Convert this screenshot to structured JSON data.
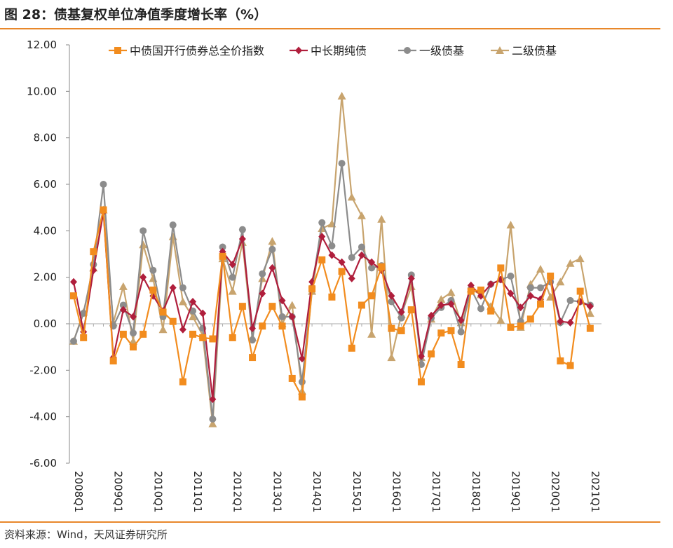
{
  "title": "图 28：债基复权单位净值季度增长率（%）",
  "source": "资料来源：Wind，天风证券研究所",
  "chart_data": {
    "type": "line",
    "title": "债基复权单位净值季度增长率（%）",
    "xlabel": "",
    "ylabel": "",
    "ylim": [
      -6,
      12
    ],
    "yticks": [
      "12.00",
      "10.00",
      "8.00",
      "6.00",
      "4.00",
      "2.00",
      "0.00",
      "-2.00",
      "-4.00",
      "-6.00"
    ],
    "ytick_values": [
      12,
      10,
      8,
      6,
      4,
      2,
      0,
      -2,
      -4,
      -6
    ],
    "xtick_labels": [
      "2008Q1",
      "2009Q1",
      "2010Q1",
      "2011Q1",
      "2012Q1",
      "2013Q1",
      "2014Q1",
      "2015Q1",
      "2016Q1",
      "2017Q1",
      "2018Q1",
      "2019Q1",
      "2020Q1",
      "2021Q1"
    ],
    "quarters": 53,
    "series": [
      {
        "name": "中债国开行债券总全价指数",
        "color": "#F28C1E",
        "marker": "square",
        "values": [
          1.2,
          -0.6,
          3.1,
          4.9,
          -1.6,
          -0.45,
          -1.0,
          -0.45,
          1.45,
          0.5,
          0.1,
          -2.5,
          -0.45,
          -0.6,
          -0.65,
          2.9,
          -0.6,
          0.75,
          -1.45,
          -0.1,
          0.75,
          -0.1,
          -2.35,
          -3.15,
          1.5,
          2.75,
          1.15,
          2.25,
          -1.05,
          0.8,
          1.2,
          2.45,
          -0.2,
          -0.3,
          0.6,
          -2.5,
          -1.3,
          -0.4,
          -0.3,
          -1.75,
          1.4,
          1.45,
          0.55,
          2.4,
          -0.15,
          -0.1,
          0.2,
          0.85,
          2.05,
          -1.6,
          -1.8,
          1.4,
          -0.2
        ]
      },
      {
        "name": "中长期纯债",
        "color": "#B01E3C",
        "marker": "diamond",
        "values": [
          1.8,
          -0.35,
          2.3,
          4.8,
          -1.45,
          0.6,
          0.3,
          2.0,
          1.2,
          0.55,
          1.55,
          -0.25,
          0.95,
          0.45,
          -3.25,
          3.1,
          2.55,
          3.65,
          -0.2,
          1.3,
          2.4,
          1.0,
          0.3,
          -1.5,
          1.8,
          3.75,
          2.95,
          2.65,
          1.95,
          2.95,
          2.65,
          2.3,
          1.2,
          0.5,
          1.95,
          -1.4,
          0.35,
          0.8,
          0.85,
          0.15,
          1.65,
          1.2,
          1.7,
          1.9,
          1.3,
          0.7,
          1.2,
          1.05,
          2.0,
          0.1,
          0.05,
          0.95,
          0.75
        ]
      },
      {
        "name": "一级债基",
        "color": "#8C8C8C",
        "marker": "circle",
        "values": [
          -0.75,
          0.45,
          2.55,
          6.0,
          -0.1,
          0.8,
          -0.4,
          4.0,
          2.3,
          0.3,
          4.25,
          1.55,
          0.55,
          -0.2,
          -4.1,
          3.3,
          2.0,
          4.05,
          -0.7,
          2.15,
          3.2,
          0.3,
          0.3,
          -2.5,
          1.55,
          4.35,
          3.35,
          6.9,
          2.85,
          3.3,
          2.4,
          2.5,
          0.95,
          0.25,
          2.1,
          -1.75,
          0.25,
          0.7,
          1.0,
          -0.35,
          1.5,
          0.65,
          1.7,
          1.9,
          2.05,
          0.1,
          1.55,
          1.55,
          1.8,
          0.05,
          1.0,
          0.95,
          0.8
        ]
      },
      {
        "name": "二级债基",
        "color": "#C8A46E",
        "marker": "triangle",
        "values": [
          -0.75,
          0.5,
          2.4,
          4.9,
          0.05,
          1.6,
          -0.75,
          3.4,
          1.95,
          -0.25,
          3.75,
          0.95,
          0.3,
          -0.5,
          -4.3,
          2.8,
          1.4,
          3.5,
          -0.6,
          1.95,
          3.55,
          0.0,
          0.8,
          -2.9,
          1.4,
          4.1,
          4.3,
          9.8,
          5.45,
          4.65,
          -0.45,
          4.5,
          -1.45,
          0.4,
          1.6,
          -1.45,
          0.2,
          1.05,
          1.35,
          0.05,
          1.5,
          1.25,
          0.75,
          0.15,
          4.25,
          -0.15,
          1.7,
          2.35,
          1.15,
          1.8,
          2.6,
          2.8,
          0.45
        ]
      }
    ]
  }
}
